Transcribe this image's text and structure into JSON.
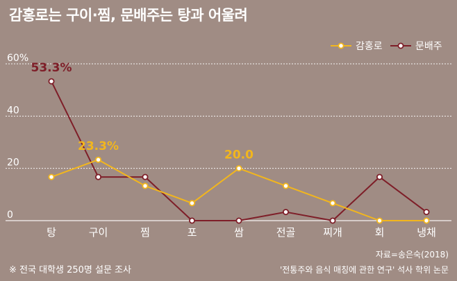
{
  "title": "감홍로는 구이·찜, 문배주는 탕과 어울려",
  "source": "자료=송은숙(2018)",
  "reference": "'전통주와 음식 매칭에 관한 연구' 석사 학위 논문",
  "note": "※ 전국 대학생 250명 설문 조사",
  "chart_data": {
    "type": "line",
    "categories": [
      "탕",
      "구이",
      "찜",
      "포",
      "쌈",
      "전골",
      "찌개",
      "회",
      "냉채"
    ],
    "yticks": [
      "60%",
      "40",
      "20",
      "0"
    ],
    "ytick_values": [
      60,
      40,
      20,
      0
    ],
    "ylim": [
      0,
      60
    ],
    "grid": true,
    "legend_position": "top-right",
    "series": [
      {
        "name": "감홍로",
        "color": "#f2b61d",
        "values": [
          16.7,
          23.3,
          13.3,
          6.7,
          20.0,
          13.3,
          6.7,
          0,
          0
        ],
        "labels": [
          {
            "index": 1,
            "text": "23.3%"
          },
          {
            "index": 4,
            "text": "20.0"
          }
        ]
      },
      {
        "name": "문배주",
        "color": "#7e1e28",
        "values": [
          53.3,
          16.7,
          16.7,
          0,
          0,
          3.3,
          0,
          16.7,
          3.3
        ],
        "labels": [
          {
            "index": 0,
            "text": "53.3%"
          }
        ]
      }
    ]
  }
}
